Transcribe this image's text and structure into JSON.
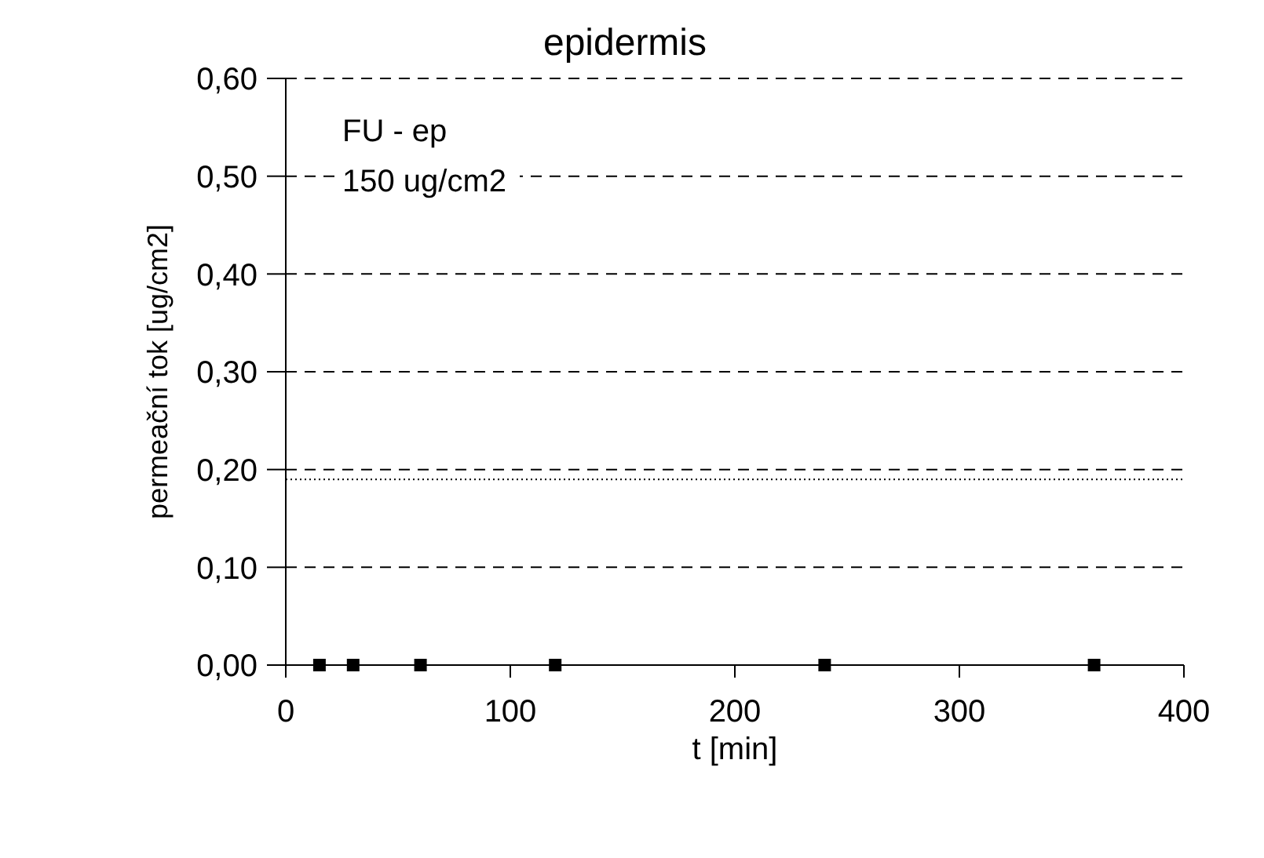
{
  "chart_data": {
    "type": "scatter",
    "title": "epidermis",
    "xlabel": "t [min]",
    "ylabel": "permeační tok [ug/cm2]",
    "annotations": [
      "FU - ep",
      "150 ug/cm2"
    ],
    "x": [
      15,
      30,
      60,
      120,
      240,
      360
    ],
    "series": [
      {
        "color": "#000000",
        "values": [
          0,
          0,
          0,
          0,
          0,
          0
        ]
      }
    ],
    "marker": "square",
    "xlim": [
      0,
      400
    ],
    "xticks": [
      0,
      100,
      200,
      300,
      400
    ],
    "ylim": [
      0,
      0.6
    ],
    "yticks": [
      {
        "value": 0,
        "label": "0,00"
      },
      {
        "value": 0.1,
        "label": "0,10"
      },
      {
        "value": 0.2,
        "label": "0,20"
      },
      {
        "value": 0.3,
        "label": "0,30"
      },
      {
        "value": 0.4,
        "label": "0,40"
      },
      {
        "value": 0.5,
        "label": "0,50"
      },
      {
        "value": 0.6,
        "label": "0,60"
      }
    ],
    "grid": "y",
    "ref_lines": [
      {
        "axis": "y",
        "value": 0.19,
        "line_style": "dotted",
        "color": "#000000"
      }
    ]
  }
}
